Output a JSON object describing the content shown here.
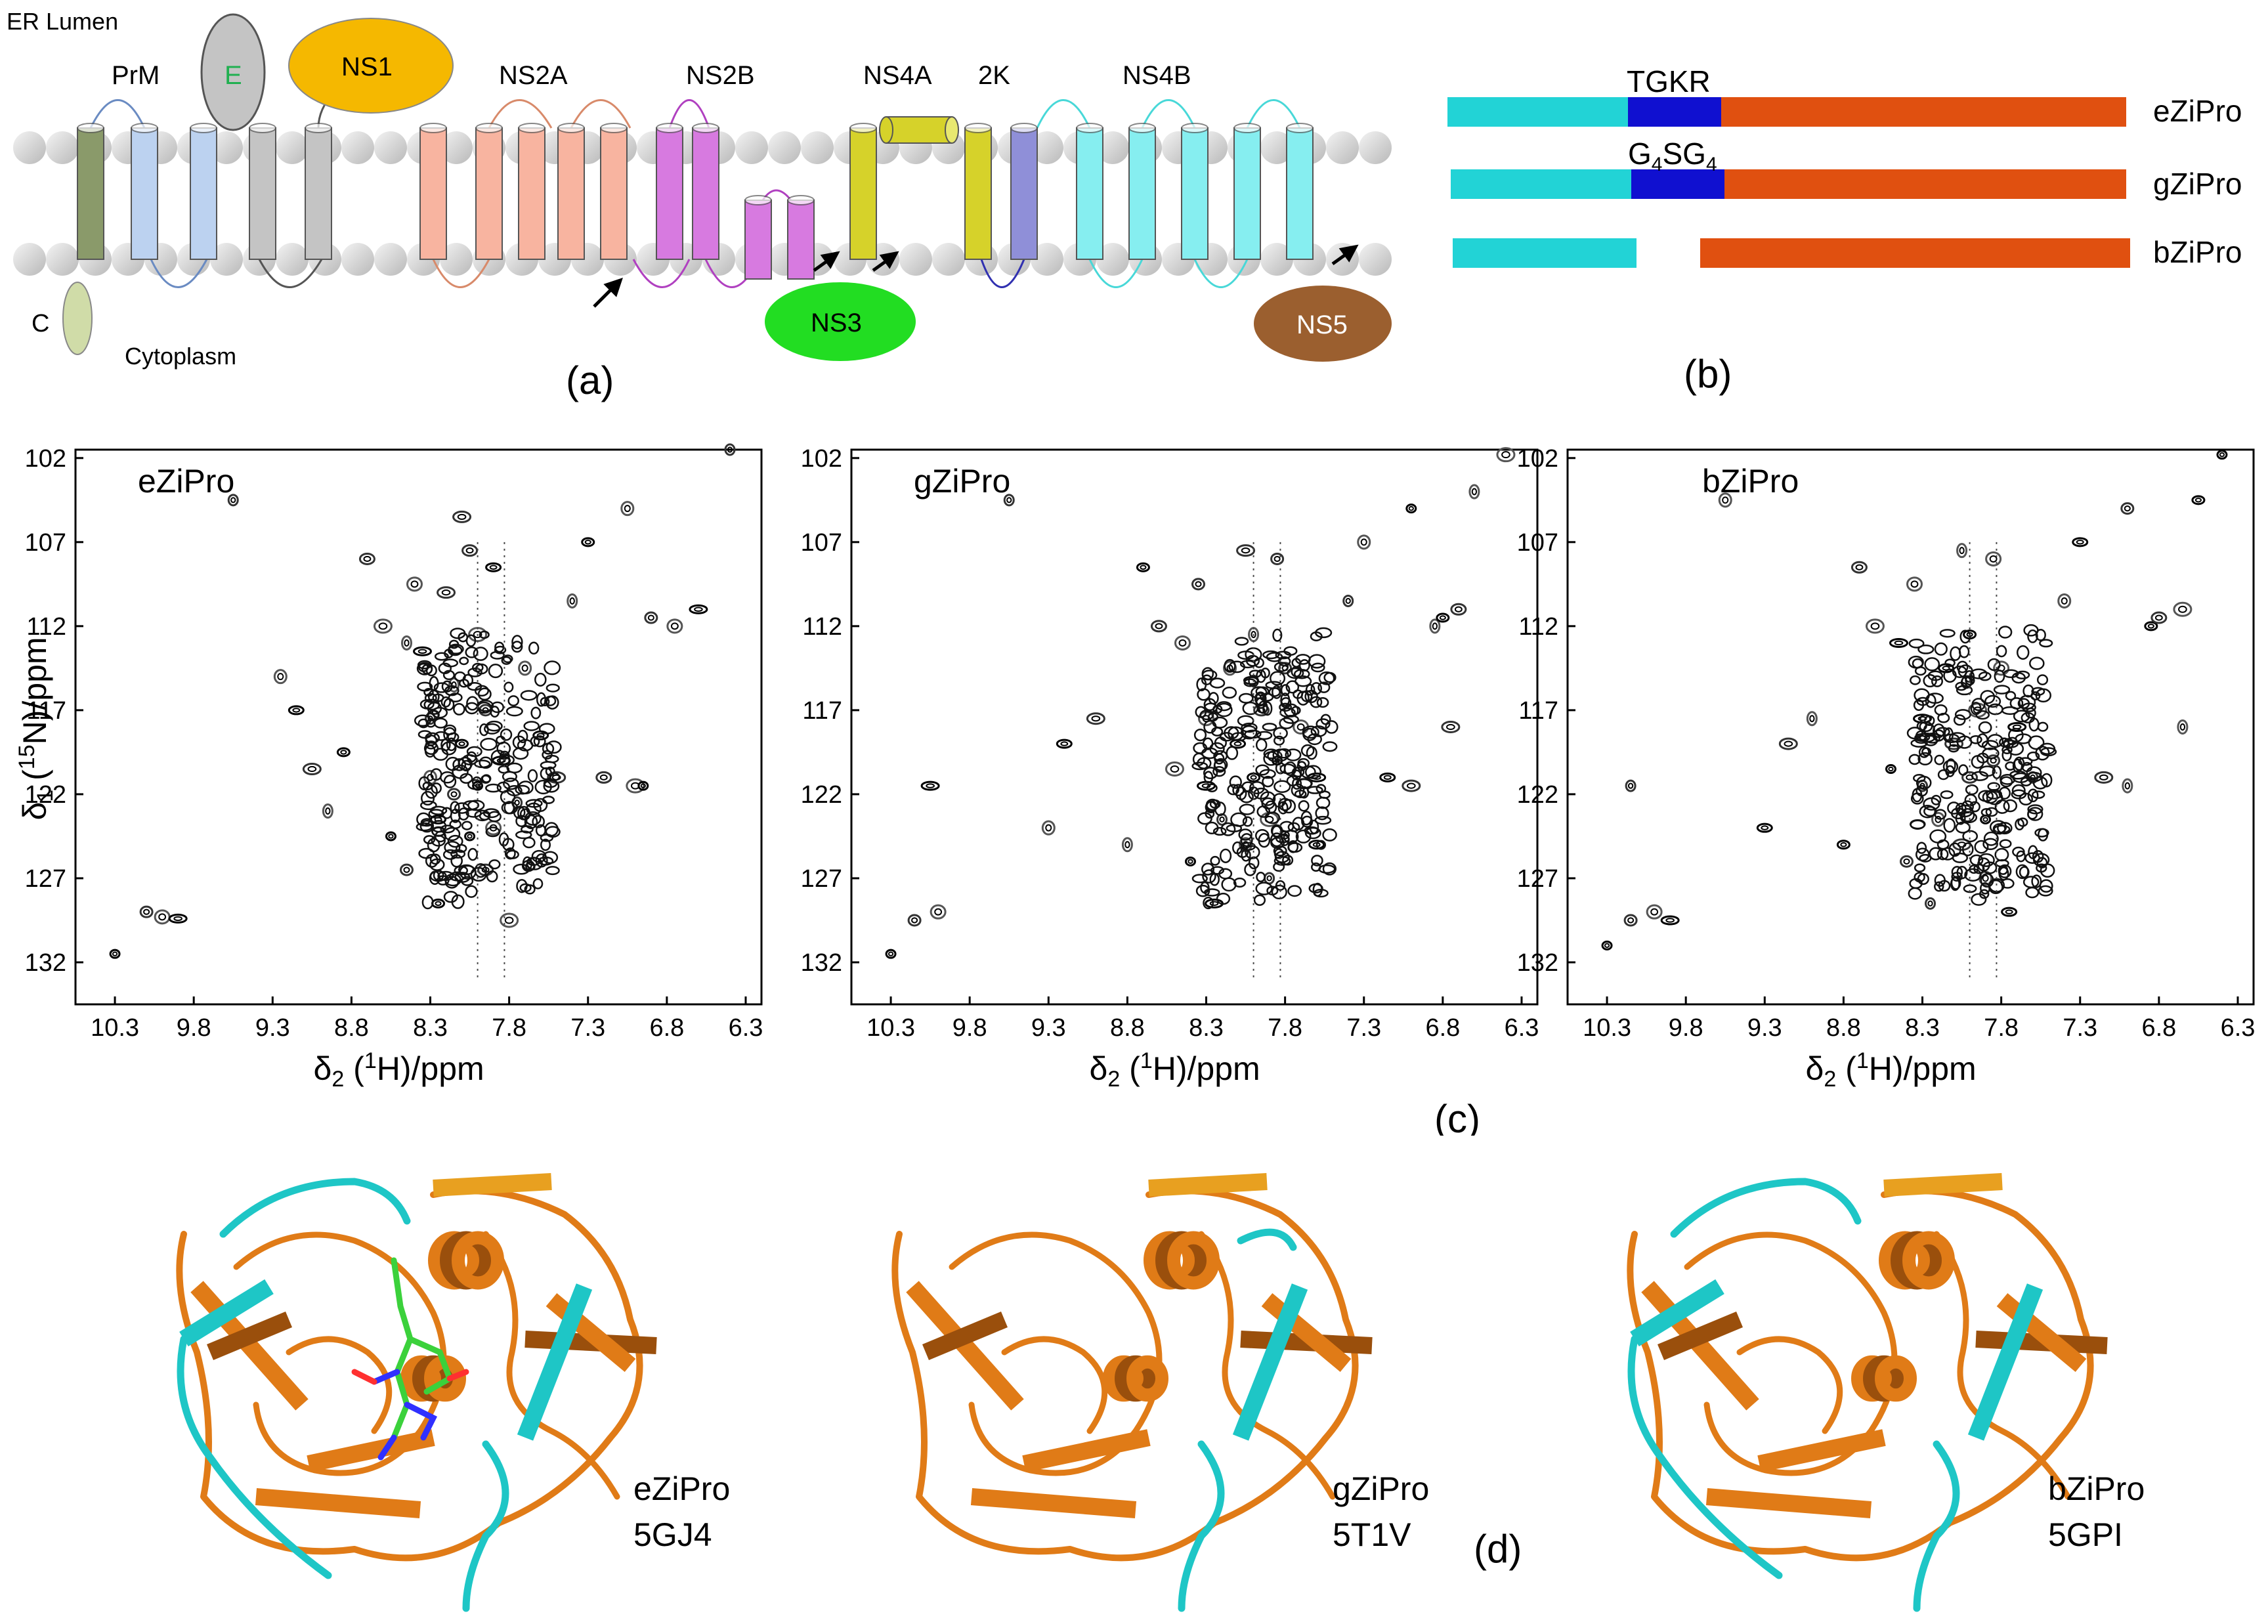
{
  "topology": {
    "er_lumen": "ER Lumen",
    "cytoplasm": "Cytoplasm",
    "labels": {
      "C": "C",
      "PrM": "PrM",
      "E": "E",
      "NS1": "NS1",
      "NS2A": "NS2A",
      "NS2B": "NS2B",
      "NS4A": "NS4A",
      "K2": "2K",
      "NS4B": "NS4B",
      "NS3": "NS3",
      "NS5": "NS5"
    },
    "colors": {
      "C": "#8a9a6a",
      "PrM": "#bcd2f0",
      "E": "#c4c4c4",
      "NS1": "#f5b800",
      "NS2A": "#f8b4a0",
      "NS2B": "#d77ae0",
      "NS4A": "#d6d22a",
      "K2": "#8f8fd8",
      "NS4B": "#86eef0",
      "NS3": "#22dd22",
      "NS5": "#9b5f2f"
    }
  },
  "panel_labels": {
    "a": "(a)",
    "b": "(b)",
    "c": "(c)",
    "d": "(d)"
  },
  "constructs": {
    "linker_top": "TGKR",
    "linker_mid": {
      "main": "G",
      "sub1": "4",
      "mid": "SG",
      "sub2": "4"
    },
    "names": [
      "eZiPro",
      "gZiPro",
      "bZiPro"
    ],
    "colors": {
      "ns2b": "#22d3d6",
      "linker": "#1010d0",
      "ns3": "#e05010"
    }
  },
  "chart_data": [
    {
      "type": "scatter",
      "title": "eZiPro",
      "xlabel": {
        "pre": "δ",
        "sub": "2",
        "mid": " (",
        "sup": "1",
        "post": "H)/ppm"
      },
      "ylabel": {
        "pre": "δ",
        "sub": "1",
        "mid": " (",
        "sup": "15",
        "post": "N)/ppm"
      },
      "xlim": [
        10.55,
        6.2
      ],
      "ylim": [
        101.5,
        134.5
      ],
      "x_ticks": [
        "10.3",
        "9.8",
        "9.3",
        "8.8",
        "8.3",
        "7.8",
        "7.3",
        "6.8",
        "6.3"
      ],
      "y_ticks": [
        "102",
        "107",
        "112",
        "117",
        "122",
        "127",
        "132"
      ],
      "peaks": [
        [
          10.3,
          131.5
        ],
        [
          10.1,
          129.0
        ],
        [
          10.0,
          129.3
        ],
        [
          9.9,
          129.4
        ],
        [
          9.55,
          104.5
        ],
        [
          9.25,
          115.0
        ],
        [
          9.15,
          117.0
        ],
        [
          9.05,
          120.5
        ],
        [
          8.95,
          123.0
        ],
        [
          8.85,
          119.5
        ],
        [
          8.7,
          108.0
        ],
        [
          8.6,
          112.0
        ],
        [
          8.55,
          124.5
        ],
        [
          8.45,
          126.5
        ],
        [
          8.4,
          109.5
        ],
        [
          8.35,
          113.5
        ],
        [
          8.3,
          117.5
        ],
        [
          8.3,
          121.0
        ],
        [
          8.25,
          123.5
        ],
        [
          8.2,
          110.0
        ],
        [
          8.15,
          115.5
        ],
        [
          8.1,
          119.0
        ],
        [
          8.05,
          107.5
        ],
        [
          8.0,
          112.5
        ],
        [
          8.0,
          121.5
        ],
        [
          7.95,
          117.0
        ],
        [
          7.9,
          124.0
        ],
        [
          7.85,
          120.0
        ],
        [
          7.75,
          122.5
        ],
        [
          7.7,
          114.5
        ],
        [
          7.6,
          118.5
        ],
        [
          7.5,
          121.0
        ],
        [
          7.4,
          110.5
        ],
        [
          7.3,
          107.0
        ],
        [
          7.2,
          121.0
        ],
        [
          7.0,
          121.5
        ],
        [
          6.95,
          121.5
        ],
        [
          6.9,
          111.5
        ],
        [
          6.75,
          112.0
        ],
        [
          6.6,
          111.0
        ],
        [
          6.4,
          101.5
        ],
        [
          7.05,
          105.0
        ],
        [
          7.9,
          108.5
        ],
        [
          8.1,
          105.5
        ],
        [
          8.45,
          113.0
        ],
        [
          8.25,
          128.5
        ],
        [
          7.95,
          126.5
        ],
        [
          7.8,
          129.5
        ],
        [
          8.05,
          124.5
        ],
        [
          8.15,
          122.0
        ]
      ]
    },
    {
      "type": "scatter",
      "title": "gZiPro",
      "xlabel": {
        "pre": "δ",
        "sub": "2",
        "mid": " (",
        "sup": "1",
        "post": "H)/ppm"
      },
      "xlim": [
        10.55,
        6.2
      ],
      "ylim": [
        101.5,
        134.5
      ],
      "x_ticks": [
        "10.3",
        "9.8",
        "9.3",
        "8.8",
        "8.3",
        "7.8",
        "7.3",
        "6.8",
        "6.3"
      ],
      "y_ticks": [
        "102",
        "107",
        "112",
        "117",
        "122",
        "127",
        "132"
      ],
      "peaks": [
        [
          10.3,
          131.5
        ],
        [
          10.15,
          129.5
        ],
        [
          10.0,
          129.0
        ],
        [
          10.05,
          121.5
        ],
        [
          9.55,
          104.5
        ],
        [
          9.3,
          124.0
        ],
        [
          9.2,
          119.0
        ],
        [
          9.0,
          117.5
        ],
        [
          8.8,
          125.0
        ],
        [
          8.7,
          108.5
        ],
        [
          8.6,
          112.0
        ],
        [
          8.5,
          120.5
        ],
        [
          8.4,
          126.0
        ],
        [
          8.35,
          109.5
        ],
        [
          8.3,
          117.5
        ],
        [
          8.3,
          121.5
        ],
        [
          8.2,
          123.5
        ],
        [
          8.15,
          114.5
        ],
        [
          8.1,
          119.0
        ],
        [
          8.05,
          107.5
        ],
        [
          8.0,
          112.5
        ],
        [
          8.0,
          121.0
        ],
        [
          7.95,
          117.0
        ],
        [
          7.9,
          123.5
        ],
        [
          7.85,
          120.0
        ],
        [
          7.8,
          114.5
        ],
        [
          7.7,
          118.0
        ],
        [
          7.6,
          121.0
        ],
        [
          7.4,
          110.5
        ],
        [
          7.3,
          107.0
        ],
        [
          7.15,
          121.0
        ],
        [
          7.0,
          121.5
        ],
        [
          6.85,
          112.0
        ],
        [
          6.8,
          111.5
        ],
        [
          6.7,
          111.0
        ],
        [
          6.4,
          101.8
        ],
        [
          7.0,
          105.0
        ],
        [
          7.85,
          108.0
        ],
        [
          8.45,
          113.0
        ],
        [
          8.25,
          128.5
        ],
        [
          7.9,
          127.0
        ],
        [
          8.05,
          125.0
        ],
        [
          7.6,
          125.0
        ],
        [
          6.75,
          118.0
        ],
        [
          6.6,
          104.0
        ]
      ]
    },
    {
      "type": "scatter",
      "title": "bZiPro",
      "xlabel": {
        "pre": "δ",
        "sub": "2",
        "mid": " (",
        "sup": "1",
        "post": "H)/ppm"
      },
      "xlim": [
        10.55,
        6.2
      ],
      "ylim": [
        101.5,
        134.5
      ],
      "x_ticks": [
        "10.3",
        "9.8",
        "9.3",
        "8.8",
        "8.3",
        "7.8",
        "7.3",
        "6.8",
        "6.3"
      ],
      "y_ticks": [
        "102",
        "107",
        "112",
        "117",
        "122",
        "127",
        "132"
      ],
      "peaks": [
        [
          10.3,
          131.0
        ],
        [
          10.15,
          129.5
        ],
        [
          10.0,
          129.0
        ],
        [
          9.9,
          129.5
        ],
        [
          10.15,
          121.5
        ],
        [
          9.55,
          104.5
        ],
        [
          9.3,
          124.0
        ],
        [
          9.15,
          119.0
        ],
        [
          9.0,
          117.5
        ],
        [
          8.8,
          125.0
        ],
        [
          8.7,
          108.5
        ],
        [
          8.6,
          112.0
        ],
        [
          8.5,
          120.5
        ],
        [
          8.4,
          126.0
        ],
        [
          8.35,
          109.5
        ],
        [
          8.3,
          117.5
        ],
        [
          8.3,
          121.5
        ],
        [
          8.2,
          123.5
        ],
        [
          8.15,
          114.5
        ],
        [
          8.1,
          119.0
        ],
        [
          8.05,
          107.5
        ],
        [
          8.0,
          112.5
        ],
        [
          8.0,
          121.0
        ],
        [
          7.95,
          117.0
        ],
        [
          7.9,
          123.5
        ],
        [
          7.85,
          120.0
        ],
        [
          7.8,
          114.5
        ],
        [
          7.7,
          118.0
        ],
        [
          7.6,
          121.0
        ],
        [
          7.4,
          110.5
        ],
        [
          7.3,
          107.0
        ],
        [
          7.15,
          121.0
        ],
        [
          7.0,
          121.5
        ],
        [
          6.85,
          112.0
        ],
        [
          6.8,
          111.5
        ],
        [
          6.65,
          111.0
        ],
        [
          6.4,
          101.8
        ],
        [
          7.0,
          105.0
        ],
        [
          7.85,
          108.0
        ],
        [
          8.45,
          113.0
        ],
        [
          8.25,
          128.5
        ],
        [
          7.9,
          127.0
        ],
        [
          7.75,
          129.0
        ],
        [
          8.05,
          125.0
        ],
        [
          6.65,
          118.0
        ],
        [
          6.55,
          104.5
        ]
      ]
    }
  ],
  "structures": [
    {
      "name": "eZiPro",
      "pdb": "5GJ4"
    },
    {
      "name": "gZiPro",
      "pdb": "5T1V"
    },
    {
      "name": "bZiPro",
      "pdb": "5GPI"
    }
  ]
}
